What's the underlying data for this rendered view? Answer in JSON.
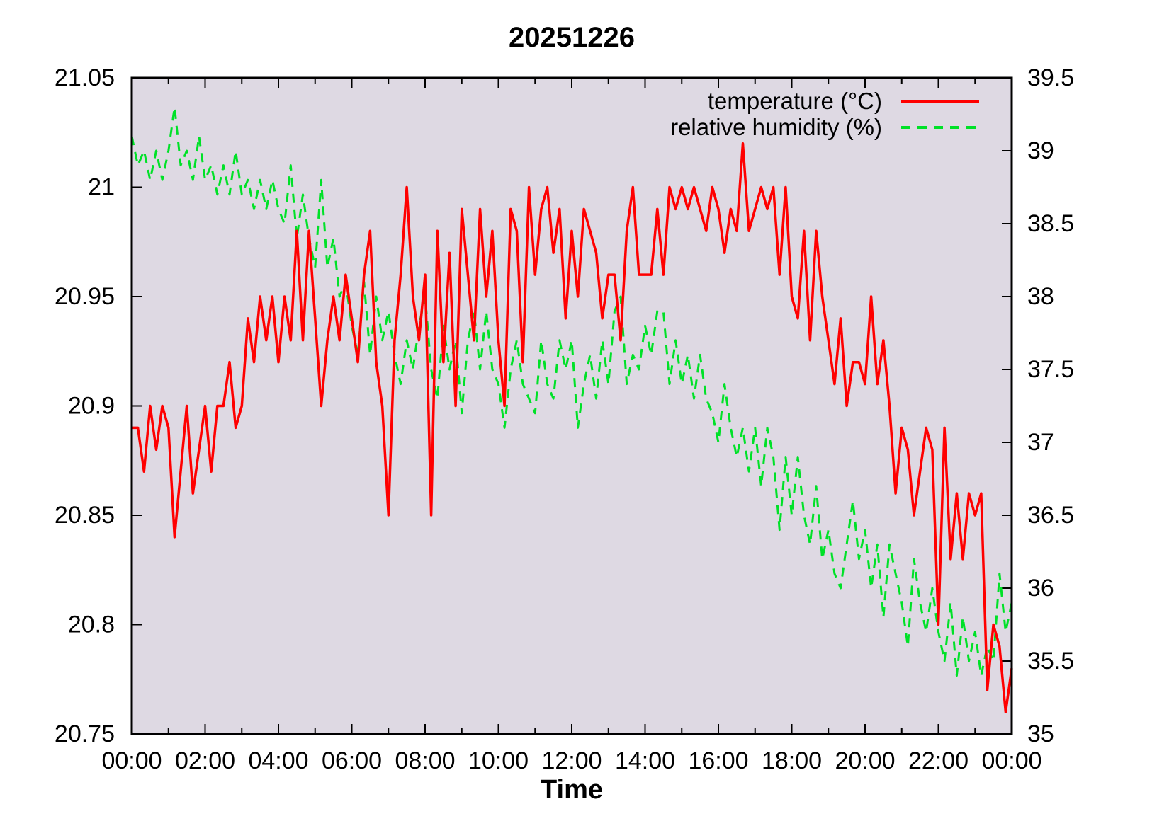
{
  "chart_data": {
    "type": "line",
    "title": "20251226",
    "xlabel": "Time",
    "plot_bg_color": "#ded9e3",
    "border_color": "#000000",
    "legend_position": "top-right-inside",
    "grid": false,
    "x_start_hour": 0,
    "x_end_hour": 24,
    "x_step_minutes": 10,
    "x_ticks_major_labels": [
      "00:00",
      "02:00",
      "04:00",
      "06:00",
      "08:00",
      "10:00",
      "12:00",
      "14:00",
      "16:00",
      "18:00",
      "20:00",
      "22:00",
      "00:00"
    ],
    "x_minor_ticks_every_hours": 1,
    "left_axis": {
      "min": 20.75,
      "max": 21.05,
      "tick_step": 0.05,
      "tick_labels_top_to_bottom": [
        "21.05",
        "21",
        "20.95",
        "20.9",
        "20.85",
        "20.8",
        "20.75"
      ]
    },
    "right_axis": {
      "min": 35,
      "max": 39.5,
      "tick_step": 0.5,
      "tick_labels_top_to_bottom": [
        "39.5",
        "39",
        "38.5",
        "38",
        "37.5",
        "37",
        "36.5",
        "36",
        "35.5",
        "35"
      ]
    },
    "series": [
      {
        "name": "temperature (°C)",
        "axis": "left",
        "color": "#ff0000",
        "line_style": "solid",
        "values": [
          20.89,
          20.89,
          20.87,
          20.9,
          20.88,
          20.9,
          20.89,
          20.84,
          20.87,
          20.9,
          20.86,
          20.88,
          20.9,
          20.87,
          20.9,
          20.9,
          20.92,
          20.89,
          20.9,
          20.94,
          20.92,
          20.95,
          20.93,
          20.95,
          20.92,
          20.95,
          20.93,
          20.98,
          20.93,
          20.98,
          20.94,
          20.9,
          20.93,
          20.95,
          20.93,
          20.96,
          20.94,
          20.92,
          20.96,
          20.98,
          20.92,
          20.9,
          20.85,
          20.93,
          20.96,
          21.0,
          20.95,
          20.93,
          20.96,
          20.85,
          20.98,
          20.92,
          20.97,
          20.9,
          20.99,
          20.96,
          20.93,
          20.99,
          20.95,
          20.98,
          20.93,
          20.9,
          20.99,
          20.98,
          20.92,
          21.0,
          20.96,
          20.99,
          21.0,
          20.97,
          20.99,
          20.94,
          20.98,
          20.95,
          20.99,
          20.98,
          20.97,
          20.94,
          20.96,
          20.96,
          20.93,
          20.98,
          21.0,
          20.96,
          20.96,
          20.96,
          20.99,
          20.96,
          21.0,
          20.99,
          21.0,
          20.99,
          21.0,
          20.99,
          20.98,
          21.0,
          20.99,
          20.97,
          20.99,
          20.98,
          21.02,
          20.98,
          20.99,
          21.0,
          20.99,
          21.0,
          20.96,
          21.0,
          20.95,
          20.94,
          20.98,
          20.93,
          20.98,
          20.95,
          20.93,
          20.91,
          20.94,
          20.9,
          20.92,
          20.92,
          20.91,
          20.95,
          20.91,
          20.93,
          20.9,
          20.86,
          20.89,
          20.88,
          20.85,
          20.87,
          20.89,
          20.88,
          20.8,
          20.89,
          20.83,
          20.86,
          20.83,
          20.86,
          20.85,
          20.86,
          20.77,
          20.8,
          20.79,
          20.76,
          20.78
        ]
      },
      {
        "name": "relative humidity (%)",
        "axis": "right",
        "color": "#00e128",
        "line_style": "dashed",
        "values": [
          39.1,
          38.9,
          39.0,
          38.8,
          39.0,
          38.8,
          39.0,
          39.3,
          38.9,
          39.0,
          38.8,
          39.1,
          38.8,
          38.9,
          38.7,
          38.9,
          38.7,
          39.0,
          38.7,
          38.8,
          38.6,
          38.8,
          38.6,
          38.8,
          38.6,
          38.5,
          38.9,
          38.4,
          38.7,
          38.4,
          38.2,
          38.8,
          38.2,
          38.4,
          38.0,
          38.1,
          37.8,
          37.6,
          38.1,
          37.6,
          38.0,
          37.7,
          37.9,
          37.6,
          37.4,
          37.7,
          37.5,
          37.8,
          38.0,
          37.5,
          37.3,
          37.8,
          37.5,
          37.7,
          37.2,
          37.7,
          37.9,
          37.5,
          37.9,
          37.5,
          37.4,
          37.1,
          37.5,
          37.7,
          37.4,
          37.3,
          37.2,
          37.7,
          37.4,
          37.3,
          37.7,
          37.5,
          37.7,
          37.1,
          37.4,
          37.6,
          37.3,
          37.7,
          37.4,
          37.9,
          38.0,
          37.4,
          37.6,
          37.5,
          37.8,
          37.6,
          37.9,
          37.9,
          37.4,
          37.7,
          37.4,
          37.6,
          37.3,
          37.6,
          37.3,
          37.2,
          37.0,
          37.4,
          37.1,
          36.9,
          37.1,
          36.8,
          37.1,
          36.7,
          37.1,
          36.9,
          36.4,
          36.9,
          36.5,
          36.9,
          36.5,
          36.3,
          36.7,
          36.2,
          36.4,
          36.1,
          36.0,
          36.3,
          36.6,
          36.2,
          36.4,
          36.0,
          36.3,
          35.8,
          36.3,
          36.1,
          35.9,
          35.6,
          36.2,
          35.9,
          35.7,
          36.0,
          35.7,
          35.5,
          35.9,
          35.4,
          35.8,
          35.5,
          35.7,
          35.4,
          35.6,
          35.5,
          36.1,
          35.7,
          35.9
        ]
      }
    ]
  }
}
